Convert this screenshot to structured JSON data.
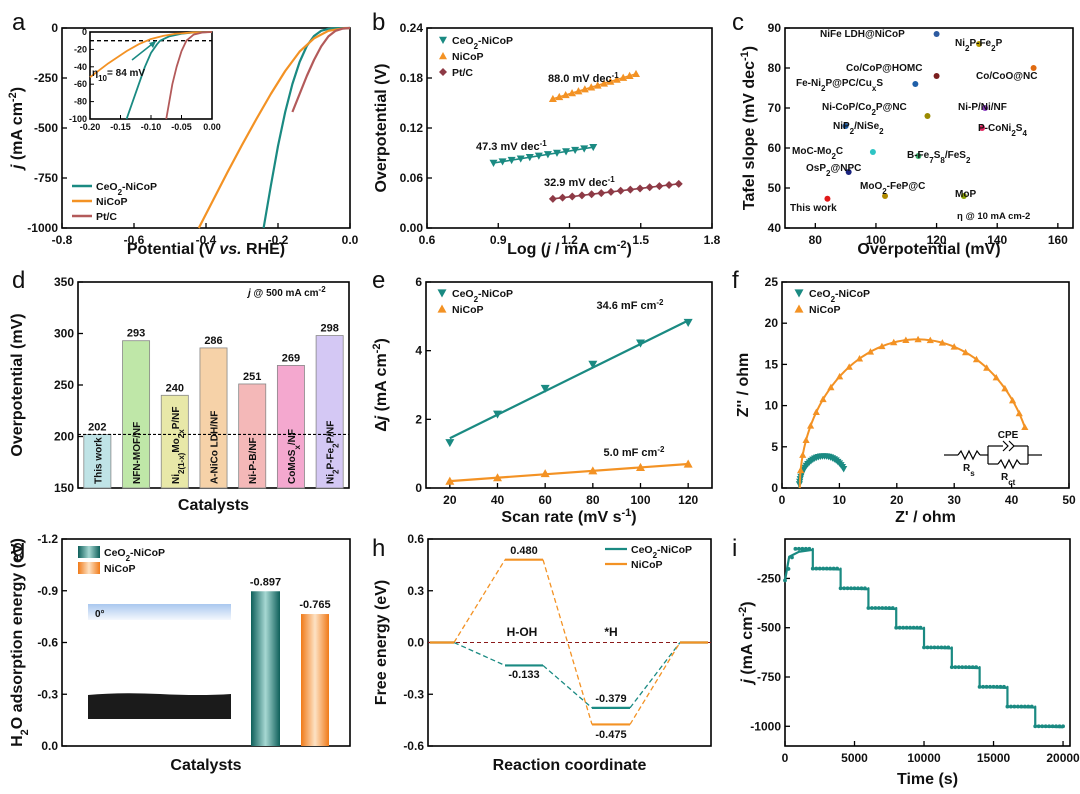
{
  "colors": {
    "teal": "#1a8a82",
    "orange": "#f39224",
    "pt": "#b35a5a",
    "maroon": "#8e3a46"
  },
  "chart_data": [
    {
      "label": "a",
      "type": "line",
      "xlabel": "Potential (V vs. RHE)",
      "ylabel": "j (mA cm-2)",
      "xlim": [
        -0.8,
        0.0
      ],
      "ylim": [
        -1000,
        0
      ],
      "xticks": [
        "-0.8",
        "-0.6",
        "-0.4",
        "-0.2",
        "0.0"
      ],
      "yticks": [
        "-1000",
        "-750",
        "-500",
        "-250",
        "0"
      ],
      "series": [
        {
          "name": "CeO2-NiCoP",
          "color": "teal",
          "x": [
            -0.24,
            -0.22,
            -0.2,
            -0.18,
            -0.16,
            -0.14,
            -0.12,
            -0.1,
            -0.08,
            -0.06,
            -0.04,
            0.0
          ],
          "y": [
            -1000,
            -790,
            -590,
            -420,
            -280,
            -170,
            -90,
            -40,
            -14,
            -4,
            -1,
            0
          ]
        },
        {
          "name": "NiCoP",
          "color": "orange",
          "x": [
            -0.42,
            -0.38,
            -0.34,
            -0.3,
            -0.26,
            -0.22,
            -0.18,
            -0.14,
            -0.1,
            -0.06,
            -0.02,
            0.0
          ],
          "y": [
            -1000,
            -860,
            -720,
            -585,
            -455,
            -330,
            -215,
            -118,
            -52,
            -14,
            -2,
            0
          ]
        },
        {
          "name": "Pt/C",
          "color": "pt",
          "x": [
            -0.16,
            -0.14,
            -0.12,
            -0.1,
            -0.08,
            -0.06,
            -0.04,
            -0.02,
            0.0
          ],
          "y": [
            -420,
            -330,
            -240,
            -160,
            -92,
            -42,
            -14,
            -3,
            0
          ]
        }
      ],
      "inset": {
        "xlim": [
          -0.2,
          0.0
        ],
        "ylim": [
          -100,
          0
        ],
        "xticks": [
          "-0.20",
          "-0.15",
          "-0.10",
          "-0.05",
          "0.00"
        ],
        "yticks": [
          "-100",
          "-80",
          "-60",
          "-40",
          "-20",
          "0"
        ],
        "annotation": "η10= 84 mV",
        "ref": -10
      }
    },
    {
      "label": "b",
      "type": "scatter",
      "xlabel": "Log (j / mA cm-2)",
      "ylabel": "Overpotential (V)",
      "xlim": [
        0.6,
        1.8
      ],
      "ylim": [
        0.0,
        0.24
      ],
      "xticks": [
        "0.6",
        "0.9",
        "1.2",
        "1.5",
        "1.8"
      ],
      "yticks": [
        "0.00",
        "0.06",
        "0.12",
        "0.18",
        "0.24"
      ],
      "series": [
        {
          "name": "CeO2-NiCoP",
          "color": "teal",
          "marker": "tri-down",
          "x0": 0.88,
          "x1": 1.3,
          "y0": 0.078,
          "y1": 0.097,
          "n": 12,
          "note": "47.3 mV dec-1"
        },
        {
          "name": "NiCoP",
          "color": "orange",
          "marker": "tri-up",
          "x0": 1.13,
          "x1": 1.48,
          "y0": 0.155,
          "y1": 0.185,
          "n": 14,
          "note": "88.0 mV dec-1"
        },
        {
          "name": "Pt/C",
          "color": "maroon",
          "marker": "diamond",
          "x0": 1.13,
          "x1": 1.66,
          "y0": 0.035,
          "y1": 0.053,
          "n": 14,
          "note": "32.9 mV dec-1"
        }
      ]
    },
    {
      "label": "c",
      "type": "scatter",
      "xlabel": "Overpotential (mV)",
      "ylabel": "Tafel slope (mV dec-1)",
      "xlim": [
        70,
        165
      ],
      "ylim": [
        40,
        90
      ],
      "xticks": [
        "80",
        "100",
        "120",
        "140",
        "160"
      ],
      "yticks": [
        "40",
        "50",
        "60",
        "70",
        "80",
        "90"
      ],
      "note": "η @ 10 mA cm-2",
      "points": [
        {
          "name": "NiFe LDH@NiCoP",
          "x": 120,
          "y": 88.5,
          "color": "#2c5aa0"
        },
        {
          "name": "Ni2P-Fe2P",
          "x": 134,
          "y": 86,
          "color": "#b59a00"
        },
        {
          "name": "Co/CoP@HOMC",
          "x": 120,
          "y": 78,
          "color": "#7a1e1e"
        },
        {
          "name": "Co/CoO@NC",
          "x": 152,
          "y": 80,
          "color": "#e06a10"
        },
        {
          "name": "Fe-Ni2P@PC/CuxS",
          "x": 113,
          "y": 76,
          "color": "#1f5fa8"
        },
        {
          "name": "Ni-CoP/Co2P@NC",
          "x": 117,
          "y": 68,
          "color": "#9a8a00"
        },
        {
          "name": "Ni-P/Ni/NF",
          "x": 136,
          "y": 70,
          "color": "#8a3fc0"
        },
        {
          "name": "NiP2/NiSe2",
          "x": 90,
          "y": 65.5,
          "color": "#1f5fa8"
        },
        {
          "name": "P-CoNi2S4",
          "x": 135,
          "y": 65,
          "color": "#e0245e"
        },
        {
          "name": "MoC-Mo2C",
          "x": 99,
          "y": 59,
          "color": "#2ec4c4"
        },
        {
          "name": "B-Fe7S8/FeS2",
          "x": 114,
          "y": 58,
          "color": "#3aa86a"
        },
        {
          "name": "OsP2@NPC",
          "x": 91,
          "y": 54,
          "color": "#1a237e"
        },
        {
          "name": "MoO2-FeP@C",
          "x": 103,
          "y": 48,
          "color": "#b08a00"
        },
        {
          "name": "MoP",
          "x": 129,
          "y": 48,
          "color": "#8aa000"
        },
        {
          "name": "This work",
          "x": 84,
          "y": 47.3,
          "color": "#e01818"
        }
      ]
    },
    {
      "label": "d",
      "type": "bar",
      "xlabel": "Catalysts",
      "ylabel": "Overpotential (mV)",
      "note": "j @ 500 mA cm-2",
      "ylim": [
        150,
        350
      ],
      "yticks": [
        "150",
        "200",
        "250",
        "300",
        "350"
      ],
      "categories": [
        "This work",
        "NFN-MOF/NF",
        "Ni2(1-x)Mo2xP/NF",
        "A-NiCo LDH/NF",
        "Ni-P-B/NF",
        "CoMoSx/NF",
        "Ni2P-Fe2P/NF"
      ],
      "values": [
        202,
        293,
        240,
        286,
        251,
        269,
        298
      ],
      "bar_colors": [
        "#bfe3e6",
        "#bfe7a8",
        "#e8e8a8",
        "#f6d2a8",
        "#f4b8b8",
        "#f4a8cf",
        "#d4c8f4"
      ],
      "ref": 202
    },
    {
      "label": "e",
      "type": "scatter",
      "xlabel": "Scan rate (mV s-1)",
      "ylabel": "Δ j (mA cm-2)",
      "xlim": [
        10,
        130
      ],
      "ylim": [
        0,
        6
      ],
      "xticks": [
        "20",
        "40",
        "60",
        "80",
        "100",
        "120"
      ],
      "yticks": [
        "0",
        "2",
        "4",
        "6"
      ],
      "series": [
        {
          "name": "CeO2-NiCoP",
          "color": "teal",
          "marker": "tri-down",
          "x": [
            20,
            40,
            60,
            80,
            100,
            120
          ],
          "y": [
            1.32,
            2.15,
            2.9,
            3.6,
            4.22,
            4.82
          ],
          "fit": [
            1.45,
            4.88
          ],
          "note": "34.6 mF cm-2"
        },
        {
          "name": "NiCoP",
          "color": "orange",
          "marker": "tri-up",
          "x": [
            20,
            40,
            60,
            80,
            100,
            120
          ],
          "y": [
            0.2,
            0.3,
            0.42,
            0.5,
            0.6,
            0.7
          ],
          "fit": [
            0.2,
            0.7
          ],
          "note": "5.0 mF cm-2"
        }
      ]
    },
    {
      "label": "f",
      "type": "scatter",
      "xlabel": "Z' / ohm",
      "ylabel": "Z'' / ohm",
      "xlim": [
        0,
        50
      ],
      "ylim": [
        0,
        25
      ],
      "xticks": [
        "0",
        "10",
        "20",
        "30",
        "40",
        "50"
      ],
      "yticks": [
        "0",
        "5",
        "10",
        "15",
        "20",
        "25"
      ],
      "series": [
        {
          "name": "CeO2-NiCoP",
          "color": "teal",
          "marker": "tri-down",
          "c": 7.3,
          "r": 4.3,
          "k": 0.9,
          "tmax": 2.5,
          "n": 30
        },
        {
          "name": "NiCoP",
          "color": "orange",
          "marker": "tri-up",
          "c": 23.6,
          "r": 20.5,
          "k": 0.88,
          "tmax": 2.72,
          "n": 26
        }
      ],
      "circuit": {
        "cpe": "CPE",
        "rs": "Rs",
        "rct": "Rct"
      }
    },
    {
      "label": "g",
      "type": "bar",
      "xlabel": "Catalysts",
      "ylabel": "H2O adsorption energy (eV)",
      "ylim": [
        0,
        -1.2
      ],
      "yticks": [
        "-1.2",
        "-0.9",
        "-0.6",
        "-0.3",
        "0.0"
      ],
      "categories": [
        "CeO2-NiCoP",
        "NiCoP"
      ],
      "values": [
        -0.897,
        -0.765
      ],
      "value_labels": [
        "-0.897",
        "-0.765"
      ],
      "angle_label": "0°"
    },
    {
      "label": "h",
      "type": "line",
      "xlabel": "Reaction coordinate",
      "ylabel": "Free energy (eV)",
      "ylim": [
        -0.6,
        0.6
      ],
      "yticks": [
        "-0.6",
        "-0.3",
        "0.0",
        "0.3",
        "0.6"
      ],
      "states": [
        "H-OH",
        "*H"
      ],
      "series": [
        {
          "name": "CeO2-NiCoP",
          "color": "teal",
          "levels": [
            0,
            -0.133,
            -0.379,
            0
          ],
          "labels": [
            "",
            "-0.133",
            "-0.379",
            ""
          ]
        },
        {
          "name": "NiCoP",
          "color": "orange",
          "levels": [
            0,
            0.48,
            -0.475,
            0
          ],
          "labels": [
            "",
            "0.480",
            "-0.475",
            ""
          ]
        }
      ]
    },
    {
      "label": "i",
      "type": "line",
      "xlabel": "Time (s)",
      "ylabel": "j (mA cm-2)",
      "xlim": [
        0,
        20000
      ],
      "ylim": [
        -1100,
        -50
      ],
      "xticks": [
        "0",
        "5000",
        "10000",
        "15000",
        "20000"
      ],
      "yticks": [
        "-1000",
        "-750",
        "-500",
        "-250"
      ],
      "series": [
        {
          "name": "CeO2-NiCoP",
          "color": "teal",
          "steps": [
            -100,
            -200,
            -300,
            -400,
            -500,
            -600,
            -700,
            -800,
            -900,
            -1000
          ],
          "step_len": 2000
        }
      ]
    }
  ]
}
